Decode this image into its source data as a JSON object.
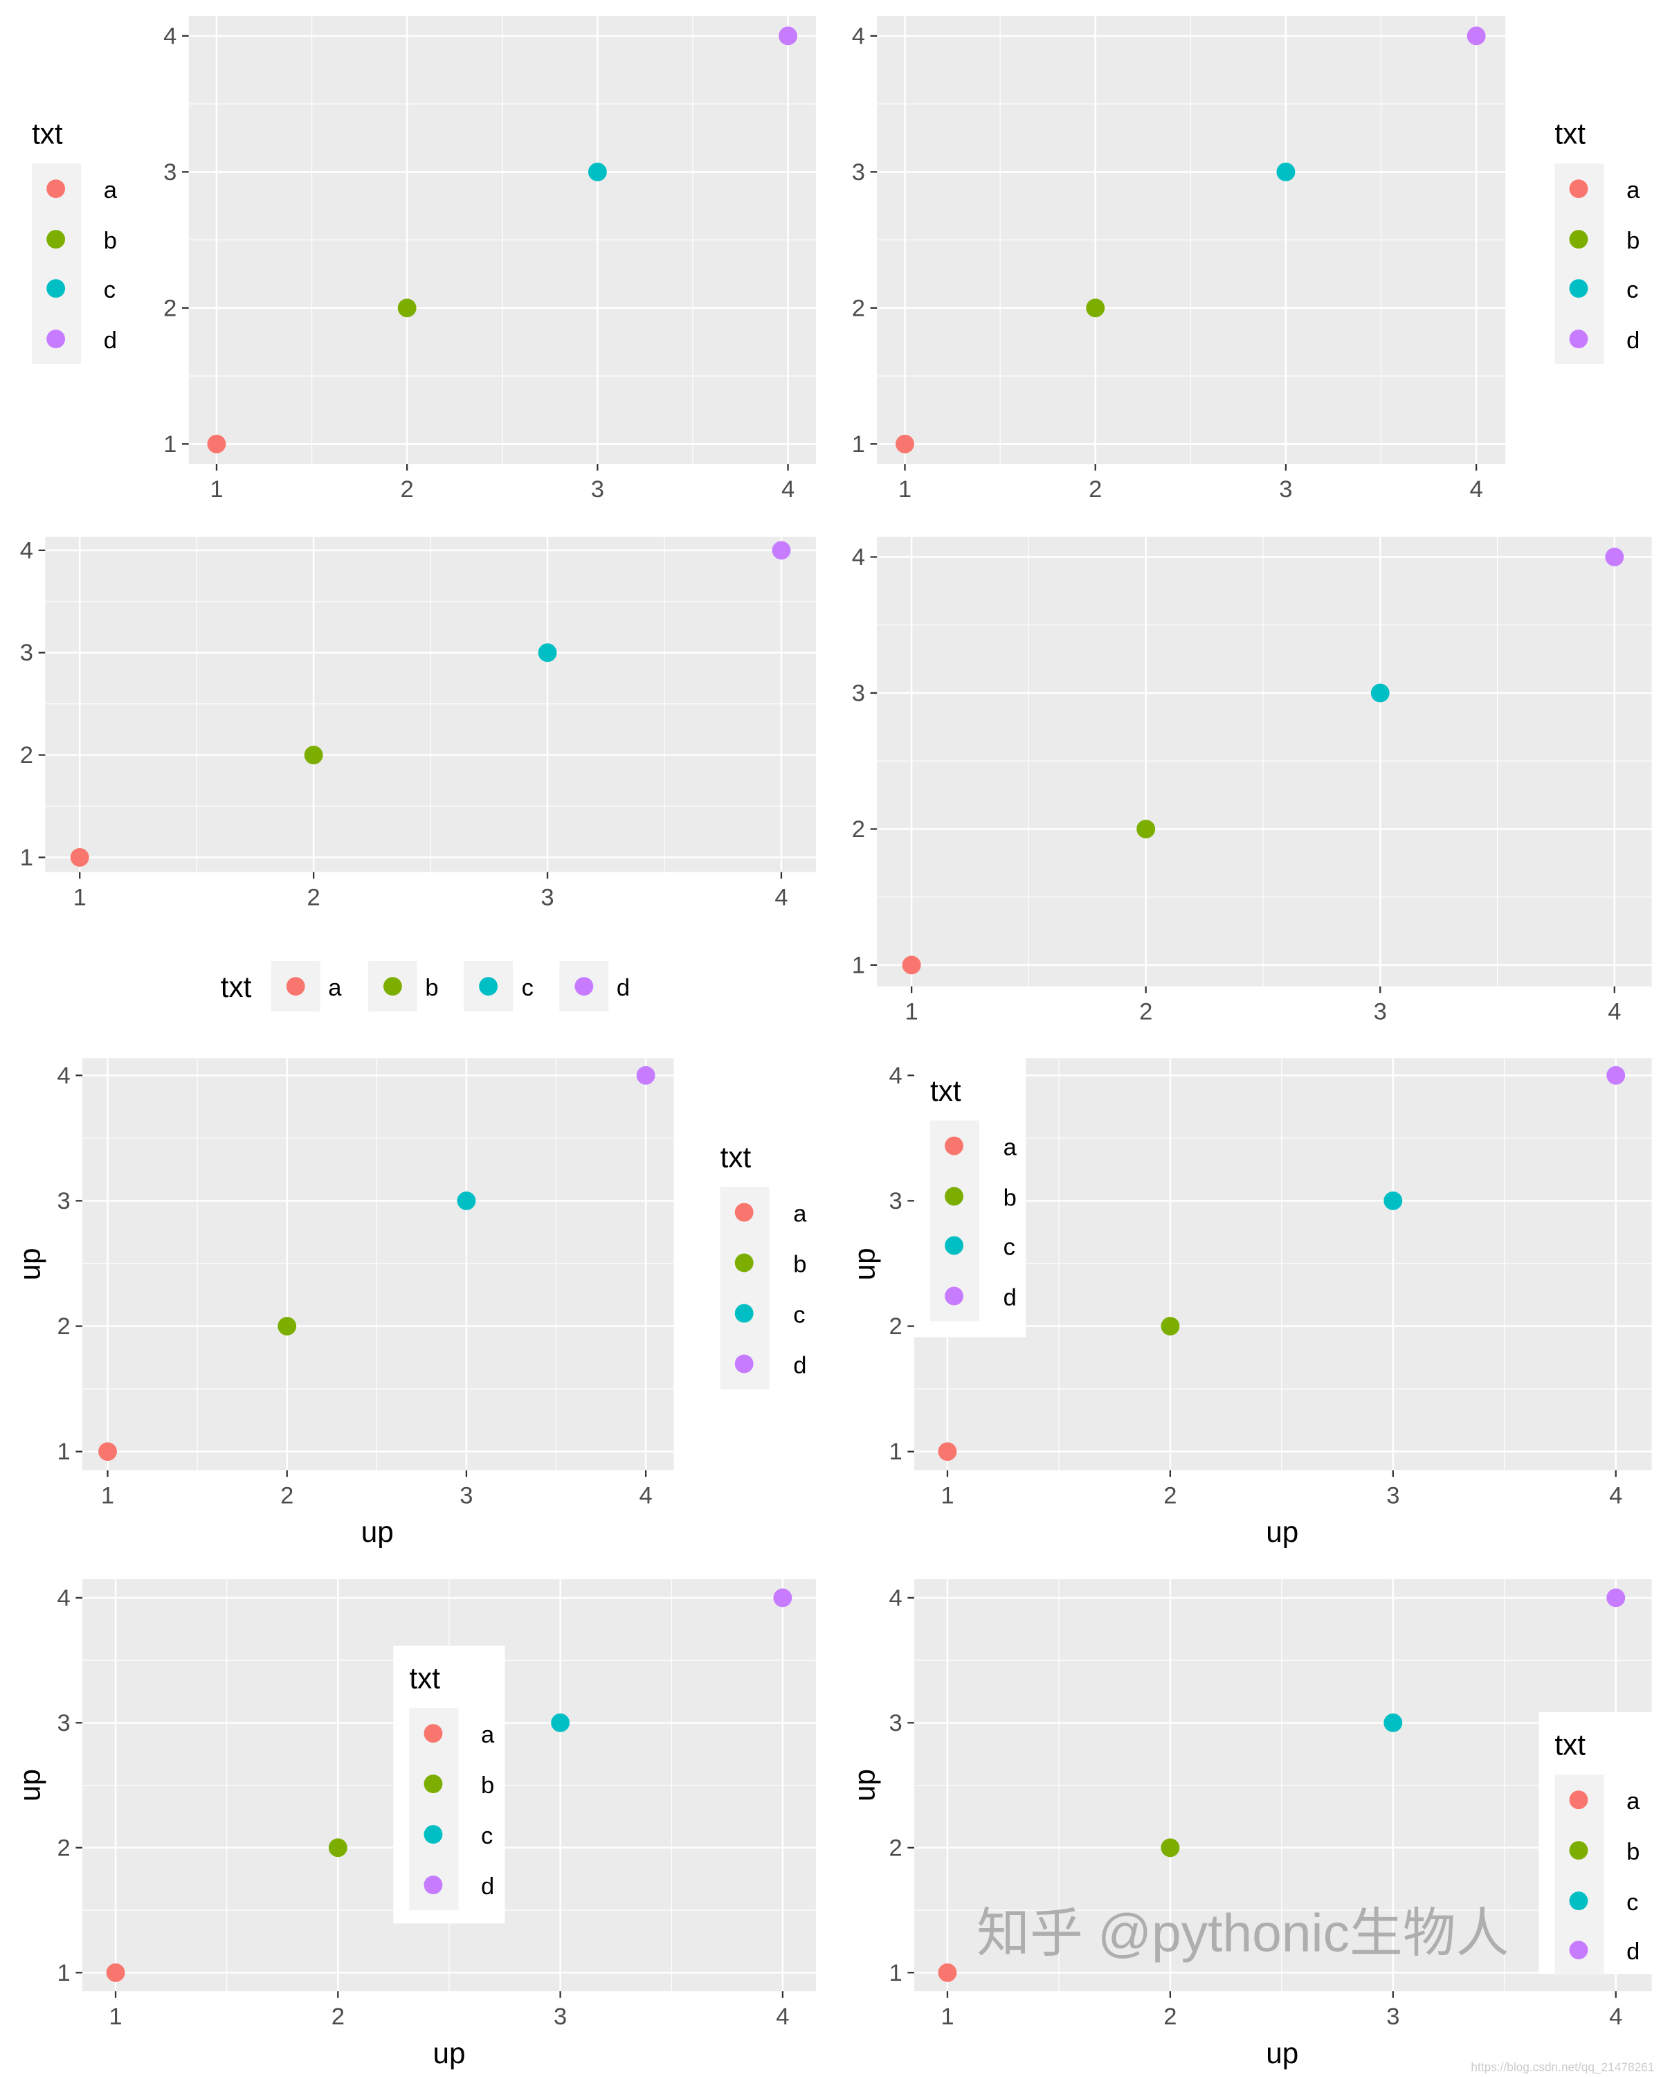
{
  "colors": {
    "a": "#F8766D",
    "b": "#7CAE00",
    "c": "#00BFC4",
    "d": "#C77CFF",
    "panel_bg": "#EBEBEB",
    "grid": "#FFFFFF",
    "legend_key_bg": "#F2F2F2"
  },
  "watermark": {
    "text": "知乎 @pythonic生物人",
    "url": "https://blog.csdn.net/qq_21478261"
  },
  "chart_data": [
    {
      "type": "scatter",
      "x": [
        1,
        2,
        3,
        4
      ],
      "y": [
        1,
        2,
        3,
        4
      ],
      "groups": [
        "a",
        "b",
        "c",
        "d"
      ],
      "xticks": [
        "1",
        "2",
        "3",
        "4"
      ],
      "yticks": [
        "1",
        "2",
        "3",
        "4"
      ],
      "xlim": [
        0.88,
        4.12
      ],
      "ylim": [
        0.85,
        4.15
      ],
      "xlabel": "",
      "ylabel": "",
      "legend": {
        "title": "txt",
        "position": "left",
        "items": [
          "a",
          "b",
          "c",
          "d"
        ]
      },
      "grid": true
    },
    {
      "type": "scatter",
      "x": [
        1,
        2,
        3,
        4
      ],
      "y": [
        1,
        2,
        3,
        4
      ],
      "groups": [
        "a",
        "b",
        "c",
        "d"
      ],
      "xticks": [
        "1",
        "2",
        "3",
        "4"
      ],
      "yticks": [
        "1",
        "2",
        "3",
        "4"
      ],
      "xlim": [
        0.88,
        4.12
      ],
      "ylim": [
        0.85,
        4.15
      ],
      "xlabel": "",
      "ylabel": "",
      "legend": {
        "title": "txt",
        "position": "right",
        "items": [
          "a",
          "b",
          "c",
          "d"
        ]
      },
      "grid": true
    },
    {
      "type": "scatter",
      "x": [
        1,
        2,
        3,
        4
      ],
      "y": [
        1,
        2,
        3,
        4
      ],
      "groups": [
        "a",
        "b",
        "c",
        "d"
      ],
      "xticks": [
        "1",
        "2",
        "3",
        "4"
      ],
      "yticks": [
        "1",
        "2",
        "3",
        "4"
      ],
      "xlim": [
        0.85,
        4.15
      ],
      "ylim": [
        0.85,
        4.15
      ],
      "xlabel": "",
      "ylabel": "",
      "legend": {
        "title": "txt",
        "position": "bottom",
        "items": [
          "a",
          "b",
          "c",
          "d"
        ]
      },
      "grid": true
    },
    {
      "type": "scatter",
      "x": [
        1,
        2,
        3,
        4
      ],
      "y": [
        1,
        2,
        3,
        4
      ],
      "groups": [
        "a",
        "b",
        "c",
        "d"
      ],
      "xticks": [
        "1",
        "2",
        "3",
        "4"
      ],
      "yticks": [
        "1",
        "2",
        "3",
        "4"
      ],
      "xlim": [
        0.85,
        4.15
      ],
      "ylim": [
        0.85,
        4.15
      ],
      "xlabel": "",
      "ylabel": "",
      "legend": {
        "title": "",
        "position": "none",
        "items": []
      },
      "grid": true
    },
    {
      "type": "scatter",
      "x": [
        1,
        2,
        3,
        4
      ],
      "y": [
        1,
        2,
        3,
        4
      ],
      "groups": [
        "a",
        "b",
        "c",
        "d"
      ],
      "xticks": [
        "1",
        "2",
        "3",
        "4"
      ],
      "yticks": [
        "1",
        "2",
        "3",
        "4"
      ],
      "xlim": [
        0.85,
        4.15
      ],
      "ylim": [
        0.85,
        4.15
      ],
      "xlabel": "up",
      "ylabel": "up",
      "legend": {
        "title": "txt",
        "position": "right",
        "items": [
          "a",
          "b",
          "c",
          "d"
        ]
      },
      "grid": true
    },
    {
      "type": "scatter",
      "x": [
        1,
        2,
        3,
        4
      ],
      "y": [
        1,
        2,
        3,
        4
      ],
      "groups": [
        "a",
        "b",
        "c",
        "d"
      ],
      "xticks": [
        "1",
        "2",
        "3",
        "4"
      ],
      "yticks": [
        "1",
        "2",
        "3",
        "4"
      ],
      "xlim": [
        0.85,
        4.15
      ],
      "ylim": [
        0.85,
        4.15
      ],
      "xlabel": "up",
      "ylabel": "up",
      "legend": {
        "title": "txt",
        "position": "inside top-left",
        "items": [
          "a",
          "b",
          "c",
          "d"
        ]
      },
      "grid": true
    },
    {
      "type": "scatter",
      "x": [
        1,
        2,
        3,
        4
      ],
      "y": [
        1,
        2,
        3,
        4
      ],
      "groups": [
        "a",
        "b",
        "c",
        "d"
      ],
      "xticks": [
        "1",
        "2",
        "3",
        "4"
      ],
      "yticks": [
        "1",
        "2",
        "3",
        "4"
      ],
      "xlim": [
        0.85,
        4.15
      ],
      "ylim": [
        0.85,
        4.15
      ],
      "xlabel": "up",
      "ylabel": "up",
      "legend": {
        "title": "txt",
        "position": "inside center",
        "items": [
          "a",
          "b",
          "c",
          "d"
        ]
      },
      "grid": true
    },
    {
      "type": "scatter",
      "x": [
        1,
        2,
        3,
        4
      ],
      "y": [
        1,
        2,
        3,
        4
      ],
      "groups": [
        "a",
        "b",
        "c",
        "d"
      ],
      "xticks": [
        "1",
        "2",
        "3",
        "4"
      ],
      "yticks": [
        "1",
        "2",
        "3",
        "4"
      ],
      "xlim": [
        0.85,
        4.15
      ],
      "ylim": [
        0.85,
        4.15
      ],
      "xlabel": "up",
      "ylabel": "up",
      "legend": {
        "title": "txt",
        "position": "inside bottom-right",
        "items": [
          "a",
          "b",
          "c",
          "d"
        ]
      },
      "grid": true
    }
  ]
}
